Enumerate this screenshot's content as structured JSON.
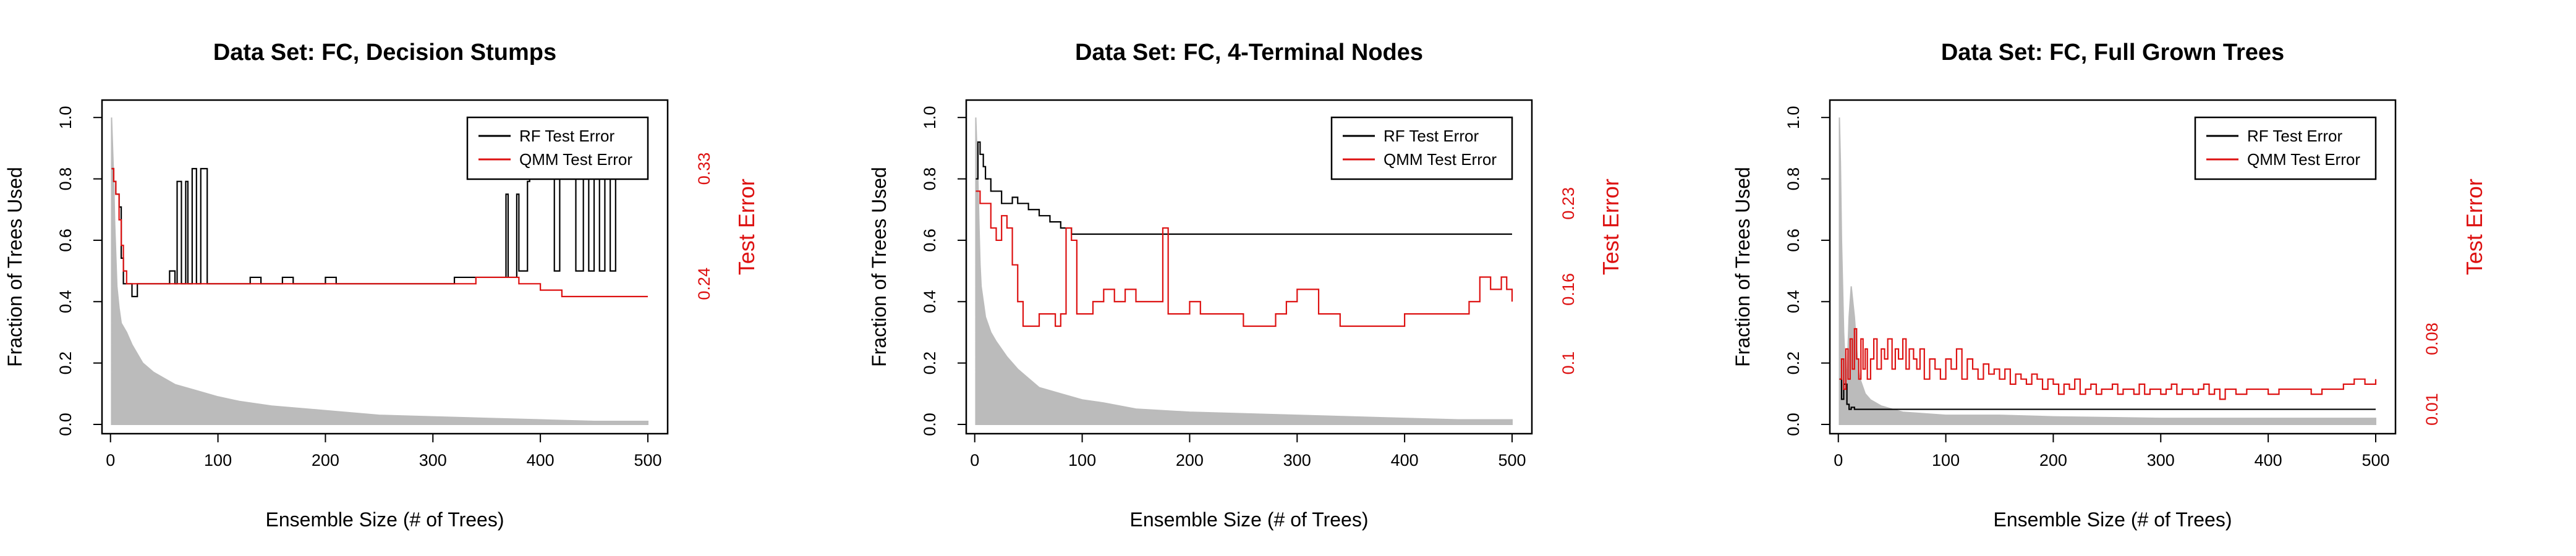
{
  "colors": {
    "rf": "#000000",
    "qmm": "#dd1111",
    "fraction_fill": "#bbbbbb",
    "right_axis": "#dd1111"
  },
  "chart_data": [
    {
      "type": "line",
      "title": "Data Set: FC, Decision Stumps",
      "xlabel": "Ensemble Size (# of Trees)",
      "ylabel": "Fraction of Trees Used",
      "ylabel_right": "Test Error",
      "xlim": [
        0,
        500
      ],
      "ylim": [
        0,
        1.0
      ],
      "xticks": [
        0,
        100,
        200,
        300,
        400,
        500
      ],
      "yticks": [
        0.0,
        0.2,
        0.4,
        0.6,
        0.8,
        1.0
      ],
      "right_axis": {
        "ticks": [
          0.24,
          0.33
        ],
        "range": [
          0.13,
          0.37
        ]
      },
      "legend": {
        "position": "top-right",
        "entries": [
          "RF Test Error",
          "QMM Test Error"
        ]
      },
      "series": [
        {
          "name": "RF Test Error",
          "axis": "right",
          "style": "step",
          "x": [
            1,
            3,
            5,
            8,
            10,
            12,
            15,
            20,
            25,
            30,
            35,
            40,
            45,
            50,
            55,
            60,
            62,
            66,
            70,
            72,
            76,
            80,
            84,
            90,
            100,
            110,
            120,
            130,
            140,
            150,
            160,
            170,
            180,
            190,
            200,
            210,
            220,
            230,
            240,
            250,
            260,
            270,
            280,
            290,
            300,
            310,
            320,
            330,
            340,
            350,
            360,
            365,
            368,
            370,
            378,
            380,
            388,
            390,
            400,
            410,
            413,
            418,
            420,
            430,
            433,
            440,
            445,
            450,
            455,
            460,
            465,
            470,
            480,
            490,
            500
          ],
          "values": [
            0.33,
            0.32,
            0.31,
            0.3,
            0.26,
            0.24,
            0.24,
            0.23,
            0.24,
            0.24,
            0.24,
            0.24,
            0.24,
            0.24,
            0.25,
            0.24,
            0.32,
            0.24,
            0.32,
            0.24,
            0.33,
            0.24,
            0.33,
            0.24,
            0.24,
            0.24,
            0.24,
            0.245,
            0.24,
            0.24,
            0.245,
            0.24,
            0.24,
            0.24,
            0.245,
            0.24,
            0.24,
            0.24,
            0.24,
            0.24,
            0.24,
            0.24,
            0.24,
            0.24,
            0.24,
            0.24,
            0.245,
            0.245,
            0.245,
            0.245,
            0.245,
            0.245,
            0.31,
            0.245,
            0.31,
            0.25,
            0.32,
            0.33,
            0.33,
            0.33,
            0.25,
            0.33,
            0.33,
            0.33,
            0.25,
            0.33,
            0.25,
            0.33,
            0.25,
            0.33,
            0.25,
            0.33,
            0.33,
            0.33,
            0.33
          ]
        },
        {
          "name": "QMM Test Error",
          "axis": "right",
          "style": "step",
          "x": [
            1,
            3,
            5,
            8,
            10,
            12,
            15,
            20,
            25,
            30,
            40,
            50,
            60,
            70,
            80,
            100,
            120,
            140,
            160,
            180,
            200,
            220,
            250,
            270,
            300,
            320,
            340,
            360,
            380,
            400,
            420,
            440,
            460,
            480,
            500
          ],
          "values": [
            0.33,
            0.32,
            0.31,
            0.29,
            0.27,
            0.25,
            0.24,
            0.24,
            0.24,
            0.24,
            0.24,
            0.24,
            0.24,
            0.24,
            0.24,
            0.24,
            0.24,
            0.24,
            0.24,
            0.24,
            0.24,
            0.24,
            0.24,
            0.24,
            0.24,
            0.24,
            0.245,
            0.245,
            0.24,
            0.235,
            0.23,
            0.23,
            0.23,
            0.23,
            0.23
          ]
        },
        {
          "name": "Fraction of Trees Used",
          "axis": "left",
          "style": "filled-impulse",
          "x": [
            1,
            2,
            3,
            4,
            5,
            6,
            8,
            10,
            15,
            20,
            30,
            40,
            50,
            60,
            80,
            100,
            120,
            150,
            200,
            250,
            300,
            350,
            400,
            450,
            500
          ],
          "values": [
            1.0,
            0.9,
            0.8,
            0.65,
            0.55,
            0.45,
            0.38,
            0.33,
            0.3,
            0.26,
            0.2,
            0.17,
            0.15,
            0.13,
            0.11,
            0.09,
            0.075,
            0.06,
            0.045,
            0.03,
            0.025,
            0.02,
            0.015,
            0.01,
            0.01
          ]
        }
      ]
    },
    {
      "type": "line",
      "title": "Data Set: FC, 4-Terminal Nodes",
      "xlabel": "Ensemble Size (# of Trees)",
      "ylabel": "Fraction of Trees Used",
      "ylabel_right": "Test Error",
      "xlim": [
        0,
        500
      ],
      "ylim": [
        0,
        1.0
      ],
      "xticks": [
        0,
        100,
        200,
        300,
        400,
        500
      ],
      "yticks": [
        0.0,
        0.2,
        0.4,
        0.6,
        0.8,
        1.0
      ],
      "right_axis": {
        "ticks": [
          0.1,
          0.16,
          0.23
        ],
        "range": [
          0.05,
          0.3
        ]
      },
      "legend": {
        "position": "top-right",
        "entries": [
          "RF Test Error",
          "QMM Test Error"
        ]
      },
      "series": [
        {
          "name": "RF Test Error",
          "axis": "right",
          "style": "step",
          "x": [
            1,
            3,
            5,
            8,
            10,
            15,
            20,
            25,
            30,
            35,
            40,
            50,
            60,
            70,
            80,
            90,
            100,
            150,
            200,
            250,
            300,
            350,
            400,
            450,
            500
          ],
          "values": [
            0.25,
            0.28,
            0.27,
            0.26,
            0.25,
            0.24,
            0.24,
            0.23,
            0.23,
            0.235,
            0.23,
            0.225,
            0.22,
            0.215,
            0.21,
            0.205,
            0.205,
            0.205,
            0.205,
            0.205,
            0.205,
            0.205,
            0.205,
            0.205,
            0.205
          ]
        },
        {
          "name": "QMM Test Error",
          "axis": "right",
          "style": "step",
          "x": [
            1,
            5,
            10,
            15,
            20,
            25,
            30,
            35,
            40,
            45,
            50,
            60,
            70,
            75,
            80,
            85,
            90,
            95,
            100,
            110,
            120,
            130,
            140,
            150,
            160,
            170,
            175,
            180,
            200,
            210,
            220,
            230,
            250,
            270,
            280,
            290,
            300,
            320,
            340,
            350,
            360,
            380,
            400,
            420,
            440,
            450,
            460,
            470,
            480,
            490,
            495,
            500
          ],
          "values": [
            0.24,
            0.23,
            0.23,
            0.21,
            0.2,
            0.22,
            0.21,
            0.18,
            0.15,
            0.13,
            0.13,
            0.14,
            0.14,
            0.13,
            0.14,
            0.21,
            0.2,
            0.14,
            0.14,
            0.15,
            0.16,
            0.15,
            0.16,
            0.15,
            0.15,
            0.15,
            0.21,
            0.14,
            0.15,
            0.14,
            0.14,
            0.14,
            0.13,
            0.13,
            0.14,
            0.15,
            0.16,
            0.14,
            0.13,
            0.13,
            0.13,
            0.13,
            0.14,
            0.14,
            0.14,
            0.14,
            0.15,
            0.17,
            0.16,
            0.17,
            0.16,
            0.15
          ]
        },
        {
          "name": "Fraction of Trees Used",
          "axis": "left",
          "style": "filled-impulse",
          "x": [
            1,
            2,
            3,
            4,
            5,
            6,
            8,
            10,
            15,
            20,
            30,
            40,
            50,
            60,
            80,
            100,
            120,
            150,
            200,
            250,
            300,
            350,
            400,
            450,
            500
          ],
          "values": [
            1.0,
            0.9,
            0.8,
            0.65,
            0.52,
            0.45,
            0.4,
            0.35,
            0.3,
            0.27,
            0.22,
            0.18,
            0.15,
            0.12,
            0.1,
            0.08,
            0.07,
            0.05,
            0.04,
            0.035,
            0.03,
            0.025,
            0.02,
            0.015,
            0.015
          ]
        }
      ]
    },
    {
      "type": "line",
      "title": "Data Set: FC, Full Grown Trees",
      "xlabel": "Ensemble Size (# of Trees)",
      "ylabel": "Fraction of Trees Used",
      "ylabel_right": "Test Error",
      "xlim": [
        0,
        500
      ],
      "ylim": [
        0,
        1.0
      ],
      "xticks": [
        0,
        100,
        200,
        300,
        400,
        500
      ],
      "yticks": [
        0.0,
        0.2,
        0.4,
        0.6,
        0.8,
        1.0
      ],
      "right_axis": {
        "ticks": [
          0.01,
          0.08
        ],
        "range": [
          -0.005,
          0.3
        ]
      },
      "legend": {
        "position": "top-right",
        "entries": [
          "RF Test Error",
          "QMM Test Error"
        ]
      },
      "series": [
        {
          "name": "RF Test Error",
          "axis": "right",
          "style": "step",
          "x": [
            1,
            3,
            5,
            8,
            10,
            12,
            15,
            20,
            30,
            40,
            50,
            100,
            200,
            300,
            400,
            500
          ],
          "values": [
            0.04,
            0.02,
            0.035,
            0.015,
            0.01,
            0.012,
            0.01,
            0.01,
            0.01,
            0.01,
            0.01,
            0.01,
            0.01,
            0.01,
            0.01,
            0.01
          ]
        },
        {
          "name": "QMM Test Error",
          "axis": "right",
          "style": "step",
          "x": [
            1,
            3,
            5,
            7,
            9,
            11,
            13,
            15,
            17,
            19,
            21,
            23,
            25,
            27,
            30,
            33,
            36,
            40,
            43,
            46,
            50,
            53,
            56,
            60,
            63,
            66,
            70,
            73,
            76,
            80,
            85,
            90,
            95,
            100,
            105,
            110,
            115,
            120,
            125,
            130,
            135,
            140,
            145,
            150,
            155,
            160,
            165,
            170,
            175,
            180,
            185,
            190,
            195,
            200,
            205,
            210,
            215,
            220,
            225,
            230,
            235,
            240,
            245,
            250,
            255,
            260,
            265,
            270,
            275,
            280,
            285,
            290,
            295,
            300,
            305,
            310,
            315,
            320,
            325,
            330,
            335,
            340,
            345,
            350,
            355,
            360,
            370,
            380,
            390,
            400,
            410,
            420,
            430,
            440,
            450,
            460,
            470,
            480,
            490,
            500
          ],
          "values": [
            0.04,
            0.06,
            0.03,
            0.07,
            0.04,
            0.08,
            0.05,
            0.09,
            0.06,
            0.04,
            0.08,
            0.05,
            0.07,
            0.04,
            0.06,
            0.08,
            0.05,
            0.07,
            0.06,
            0.08,
            0.05,
            0.07,
            0.06,
            0.08,
            0.05,
            0.07,
            0.06,
            0.05,
            0.07,
            0.04,
            0.06,
            0.05,
            0.04,
            0.06,
            0.05,
            0.07,
            0.04,
            0.06,
            0.05,
            0.04,
            0.055,
            0.045,
            0.05,
            0.04,
            0.05,
            0.035,
            0.045,
            0.04,
            0.035,
            0.045,
            0.04,
            0.03,
            0.04,
            0.035,
            0.025,
            0.035,
            0.03,
            0.04,
            0.025,
            0.03,
            0.035,
            0.025,
            0.03,
            0.03,
            0.035,
            0.025,
            0.03,
            0.03,
            0.025,
            0.035,
            0.025,
            0.03,
            0.03,
            0.025,
            0.03,
            0.035,
            0.025,
            0.03,
            0.03,
            0.025,
            0.03,
            0.035,
            0.025,
            0.03,
            0.02,
            0.03,
            0.025,
            0.03,
            0.03,
            0.025,
            0.03,
            0.03,
            0.03,
            0.025,
            0.03,
            0.03,
            0.035,
            0.04,
            0.035,
            0.04
          ]
        },
        {
          "name": "Fraction of Trees Used",
          "axis": "left",
          "style": "filled-impulse",
          "x": [
            1,
            2,
            3,
            4,
            5,
            6,
            8,
            10,
            12,
            15,
            18,
            20,
            25,
            30,
            40,
            50,
            60,
            80,
            100,
            150,
            200,
            300,
            400,
            500
          ],
          "values": [
            1.0,
            0.85,
            0.6,
            0.45,
            0.3,
            0.22,
            0.15,
            0.35,
            0.45,
            0.35,
            0.2,
            0.15,
            0.1,
            0.08,
            0.06,
            0.05,
            0.04,
            0.035,
            0.03,
            0.03,
            0.025,
            0.02,
            0.02,
            0.02
          ]
        }
      ]
    }
  ]
}
